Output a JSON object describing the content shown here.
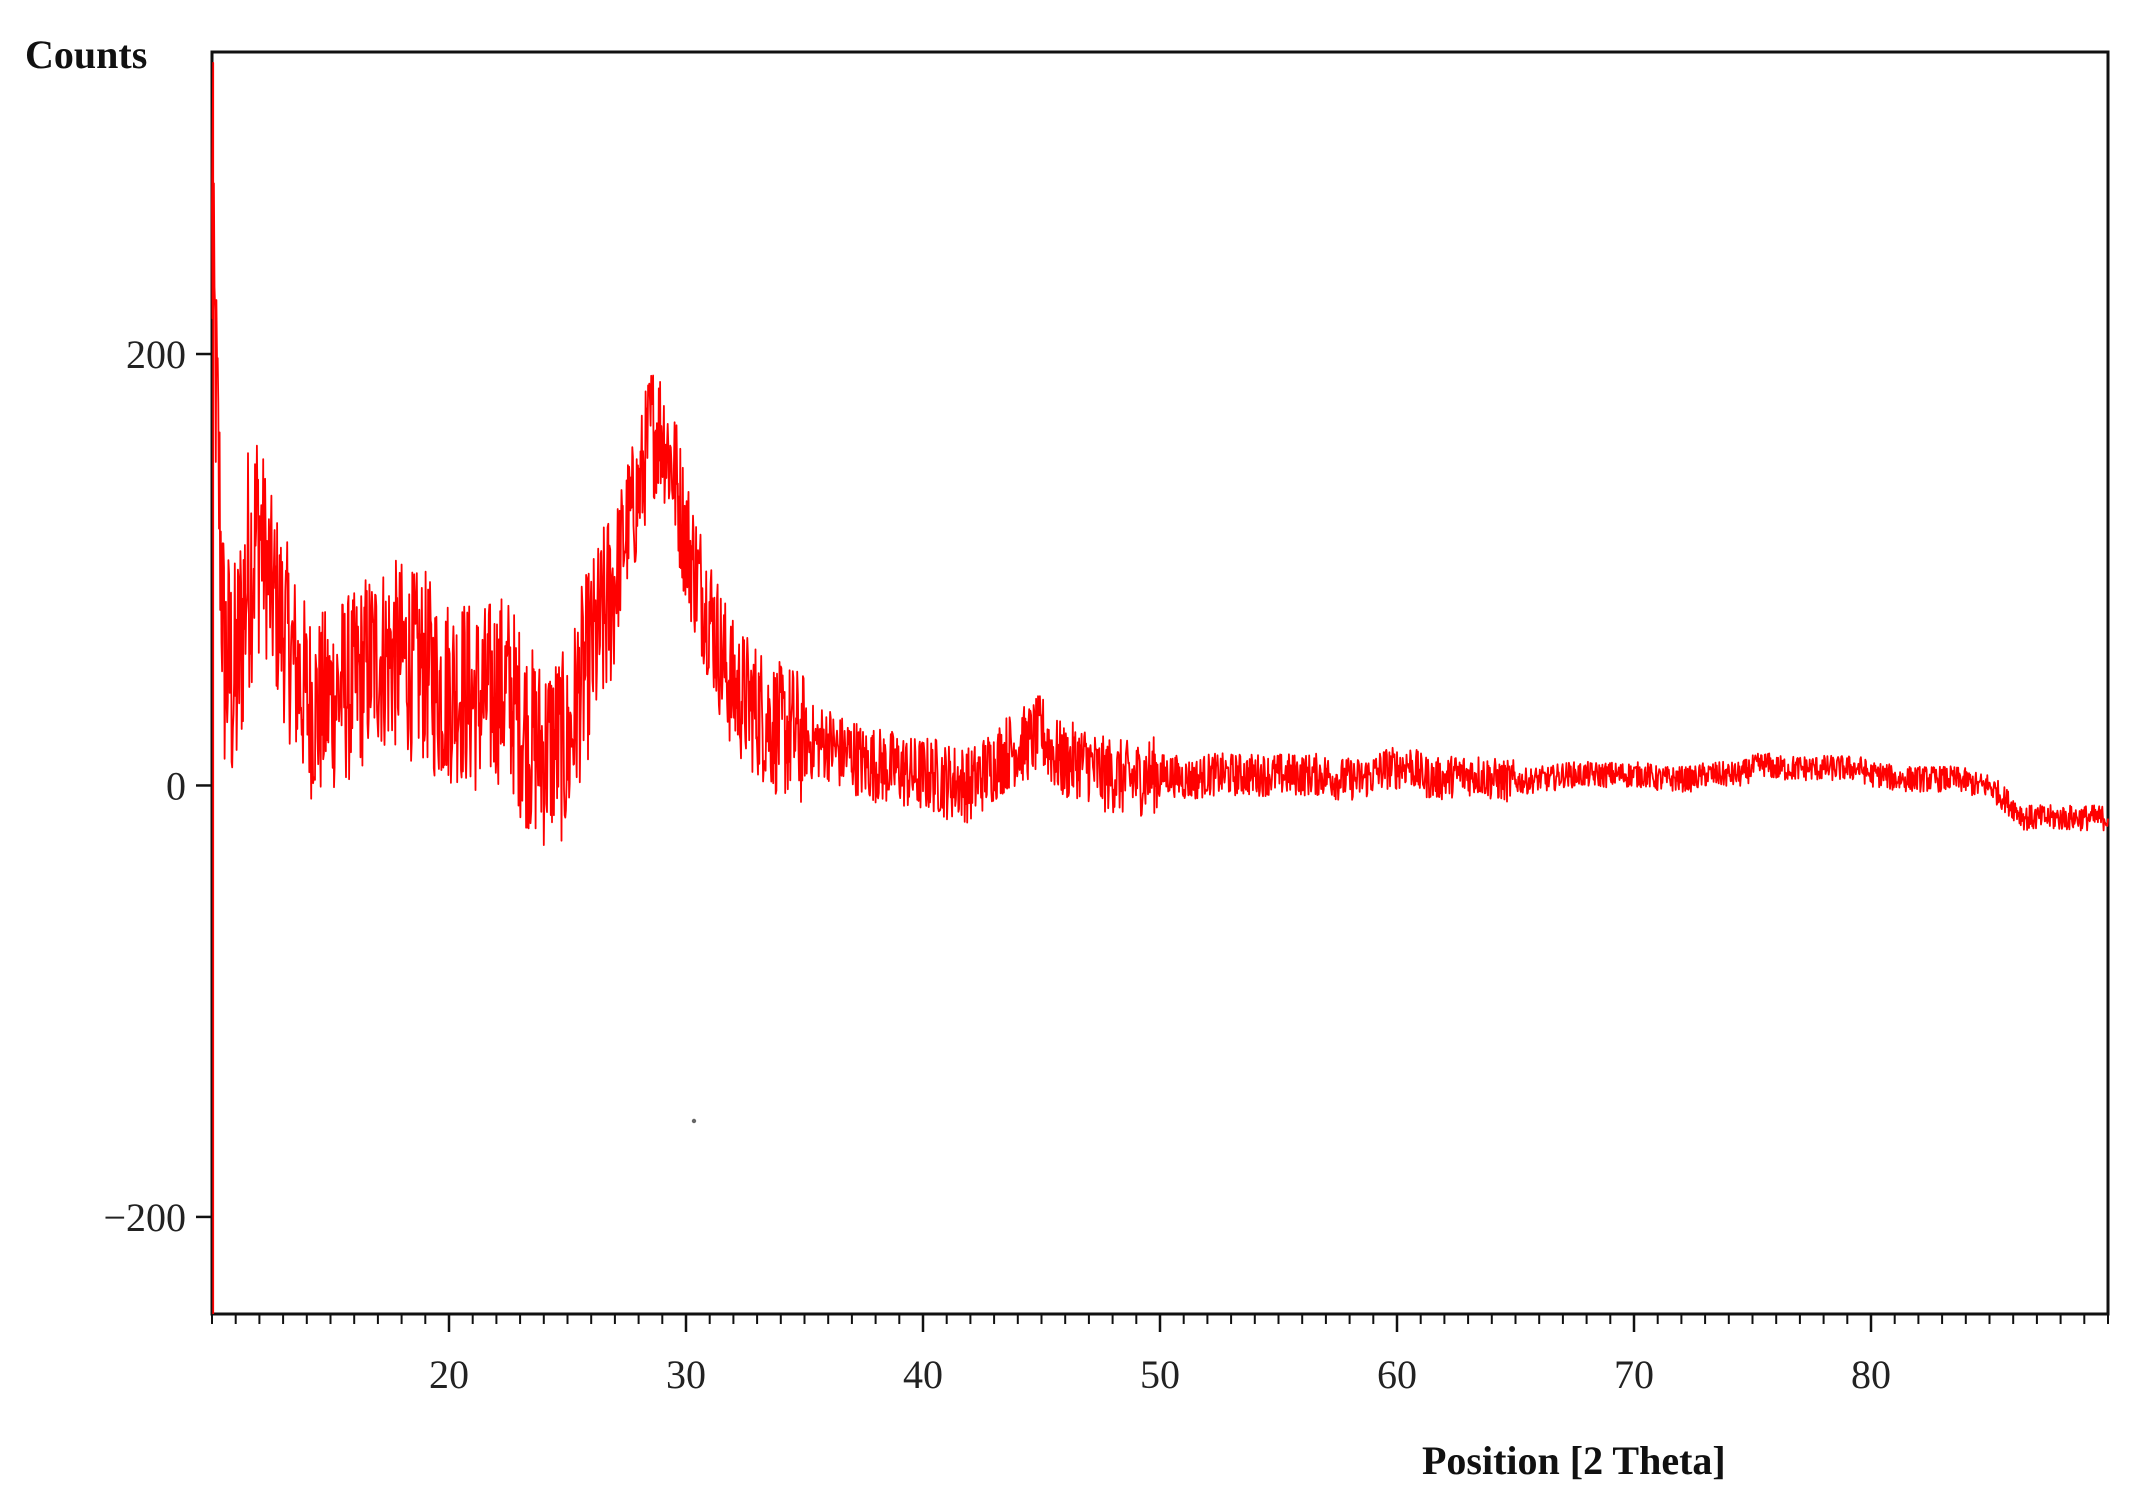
{
  "chart_data": {
    "type": "line",
    "title": "",
    "ylabel": "Counts",
    "xlabel": "Position [2 Theta]",
    "xlim": [
      10,
      90
    ],
    "ylim": [
      -245,
      340
    ],
    "x_ticks": [
      20,
      30,
      40,
      50,
      60,
      70,
      80
    ],
    "y_ticks": [
      -200,
      0,
      200
    ],
    "x_minor_tick_step": 1,
    "grid": false,
    "legend": "none",
    "line_color": "#ff0000",
    "series": [
      {
        "x_start": 10,
        "x_step": 0.5,
        "y": [
          250,
          60,
          45,
          100,
          120,
          90,
          75,
          55,
          40,
          35,
          40,
          45,
          45,
          55,
          60,
          60,
          60,
          55,
          55,
          45,
          45,
          45,
          40,
          40,
          45,
          45,
          30,
          20,
          15,
          20,
          15,
          45,
          60,
          75,
          95,
          120,
          135,
          165,
          165,
          145,
          115,
          95,
          80,
          60,
          45,
          40,
          35,
          30,
          25,
          25,
          20,
          20,
          20,
          15,
          15,
          10,
          10,
          8,
          8,
          5,
          5,
          5,
          2,
          2,
          0,
          5,
          10,
          15,
          18,
          20,
          25,
          15,
          10,
          12,
          10,
          5,
          5,
          3,
          3,
          5,
          5,
          5,
          3,
          3,
          5,
          5,
          5,
          5,
          5,
          5,
          5,
          5,
          5,
          5,
          5,
          3,
          3,
          3,
          5,
          8,
          8,
          10,
          5,
          3,
          3,
          5,
          5,
          5,
          3,
          2,
          2,
          2,
          3,
          3,
          5,
          5,
          5,
          5,
          5,
          5,
          5,
          5,
          3,
          3,
          3,
          3,
          5,
          5,
          5,
          5,
          8,
          10,
          8,
          8,
          8,
          8,
          8,
          8,
          8,
          8,
          5,
          5,
          3,
          3,
          3,
          3,
          3,
          3,
          2,
          0,
          0,
          -5,
          -10,
          -15,
          -15,
          -15,
          -15,
          -15,
          -15,
          -15,
          -15
        ]
      }
    ],
    "noise_amplitude_note": ""
  }
}
